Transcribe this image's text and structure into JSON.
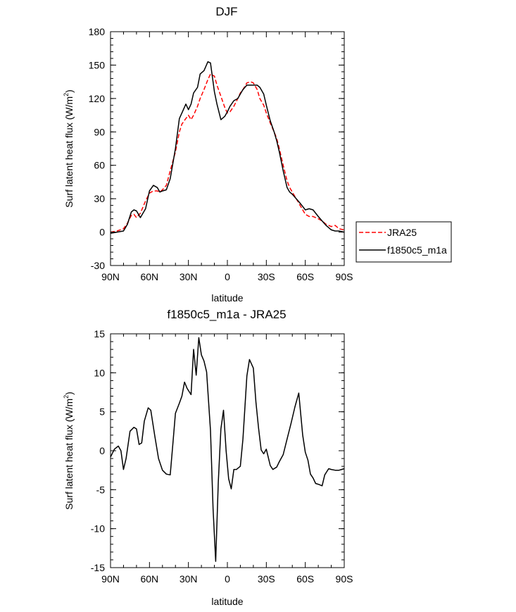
{
  "chart_data": [
    {
      "type": "line",
      "title": "DJF",
      "xlabel": "latitude",
      "ylabel": "Surf latent heat flux (W/m",
      "ylabel_sup": "2",
      "ylabel_close": ")",
      "xlim": [
        -90,
        90
      ],
      "ylim": [
        -30,
        180
      ],
      "xticks": [
        -90,
        -60,
        -30,
        0,
        30,
        60,
        90
      ],
      "xtick_labels": [
        "90N",
        "60N",
        "30N",
        "0",
        "30S",
        "60S",
        "90S"
      ],
      "yticks": [
        -30,
        0,
        30,
        60,
        90,
        120,
        150,
        180
      ],
      "ytick_labels": [
        "-30",
        "0",
        "30",
        "60",
        "90",
        "120",
        "150",
        "180"
      ],
      "legend": "right",
      "series": [
        {
          "name": "JRA25",
          "color": "#ff0000",
          "dash": "dashed",
          "x": [
            -90,
            -85,
            -80,
            -77,
            -74,
            -72,
            -70,
            -67,
            -63,
            -60,
            -57,
            -54,
            -52,
            -50,
            -47,
            -44,
            -40,
            -37,
            -35,
            -32,
            -30,
            -28,
            -26,
            -23,
            -21,
            -18,
            -15,
            -13,
            -10,
            -8,
            -5,
            -2,
            0,
            2,
            5,
            8,
            10,
            12,
            15,
            18,
            20,
            23,
            25,
            28,
            30,
            33,
            36,
            38,
            40,
            43,
            46,
            48,
            50,
            53,
            56,
            58,
            60,
            63,
            66,
            70,
            73,
            76,
            80,
            83,
            86,
            90
          ],
          "y": [
            0,
            1,
            3,
            8,
            15,
            16,
            13,
            17,
            28,
            35,
            37,
            37,
            36,
            38,
            42,
            55,
            72,
            90,
            97,
            102,
            105,
            101,
            105,
            113,
            120,
            128,
            137,
            142,
            140,
            132,
            122,
            112,
            107,
            108,
            113,
            120,
            125,
            128,
            134,
            135,
            134,
            128,
            120,
            114,
            107,
            98,
            90,
            84,
            75,
            60,
            46,
            40,
            36,
            30,
            24,
            20,
            16,
            14,
            14,
            12,
            10,
            7,
            5,
            6,
            3,
            2
          ]
        },
        {
          "name": "f1850c5_m1a",
          "color": "#000000",
          "dash": "solid",
          "x": [
            -90,
            -85,
            -80,
            -77,
            -74,
            -72,
            -70,
            -67,
            -63,
            -60,
            -57,
            -54,
            -52,
            -50,
            -47,
            -44,
            -40,
            -37,
            -35,
            -32,
            -30,
            -28,
            -26,
            -23,
            -21,
            -18,
            -15,
            -13,
            -10,
            -8,
            -5,
            -2,
            0,
            2,
            5,
            8,
            10,
            12,
            15,
            18,
            20,
            23,
            25,
            28,
            30,
            33,
            36,
            38,
            40,
            43,
            46,
            48,
            50,
            53,
            56,
            58,
            60,
            63,
            66,
            70,
            73,
            76,
            80,
            83,
            86,
            90
          ],
          "y": [
            -1,
            0,
            1,
            7,
            18,
            20,
            19,
            13,
            21,
            37,
            42,
            40,
            36,
            37,
            38,
            48,
            75,
            102,
            107,
            115,
            110,
            115,
            125,
            130,
            142,
            145,
            153,
            152,
            126,
            115,
            101,
            104,
            108,
            113,
            118,
            120,
            124,
            128,
            132,
            132,
            132,
            132,
            130,
            124,
            114,
            100,
            90,
            82,
            72,
            55,
            40,
            36,
            34,
            30,
            26,
            23,
            20,
            21,
            20,
            14,
            10,
            6,
            2,
            1,
            1,
            0
          ]
        }
      ]
    },
    {
      "type": "line",
      "title": "f1850c5_m1a - JRA25",
      "xlabel": "latitude",
      "ylabel": "Surf latent heat flux (W/m",
      "ylabel_sup": "2",
      "ylabel_close": ")",
      "xlim": [
        -90,
        90
      ],
      "ylim": [
        -15,
        15
      ],
      "xticks": [
        -90,
        -60,
        -30,
        0,
        30,
        60,
        90
      ],
      "xtick_labels": [
        "90N",
        "60N",
        "30N",
        "0",
        "30S",
        "60S",
        "90S"
      ],
      "yticks": [
        -15,
        -10,
        -5,
        0,
        5,
        10,
        15
      ],
      "ytick_labels": [
        "-15",
        "-10",
        "-5",
        "0",
        "5",
        "10",
        "15"
      ],
      "series": [
        {
          "name": "f1850c5_m1a - JRA25",
          "color": "#000000",
          "dash": "solid",
          "x": [
            -90,
            -87,
            -84,
            -82,
            -80,
            -78,
            -75,
            -72,
            -70,
            -68,
            -66,
            -64,
            -61,
            -59,
            -56,
            -53,
            -50,
            -47,
            -44,
            -42,
            -40,
            -37,
            -35,
            -33,
            -31,
            -28,
            -26,
            -24,
            -22,
            -20,
            -18,
            -16,
            -13,
            -11,
            -9,
            -7,
            -5,
            -3,
            -1,
            1,
            3,
            5,
            7,
            10,
            12,
            15,
            17,
            20,
            22,
            24,
            26,
            28,
            30,
            33,
            35,
            38,
            40,
            43,
            46,
            49,
            52,
            55,
            58,
            60,
            62,
            64,
            66,
            68,
            70,
            73,
            75,
            78,
            80,
            83,
            86,
            88,
            90
          ],
          "y": [
            -0.8,
            0.2,
            0.6,
            0.0,
            -2.4,
            -1.0,
            2.5,
            3.0,
            2.8,
            0.8,
            1.0,
            3.8,
            5.5,
            5.2,
            2.0,
            -1.0,
            -2.5,
            -3.0,
            -3.1,
            0.8,
            4.8,
            6.1,
            7.0,
            8.8,
            8.0,
            7.2,
            13.0,
            9.7,
            14.5,
            12.3,
            11.5,
            10.1,
            2.6,
            -7.5,
            -14.2,
            -4.0,
            2.8,
            5.2,
            0.0,
            -3.6,
            -4.9,
            -2.4,
            -2.4,
            -2.0,
            1.5,
            9.6,
            11.7,
            10.6,
            6.2,
            2.9,
            0.1,
            -0.4,
            0.2,
            -1.9,
            -2.4,
            -2.1,
            -1.4,
            -0.5,
            1.5,
            3.5,
            5.6,
            7.4,
            2.0,
            -0.2,
            -1.2,
            -3.0,
            -3.5,
            -4.2,
            -4.3,
            -4.5,
            -3.1,
            -2.3,
            -2.4,
            -2.5,
            -2.5,
            -2.4,
            -2.3
          ]
        }
      ]
    }
  ]
}
